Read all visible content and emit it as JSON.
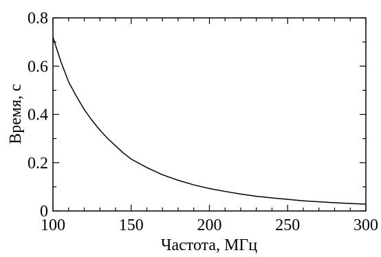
{
  "chart_data": {
    "type": "line",
    "title": "",
    "xlabel": "Частота, МГц",
    "ylabel": "Время, с",
    "xlim": [
      100,
      300
    ],
    "ylim": [
      0,
      0.8
    ],
    "x_ticks": [
      100,
      150,
      200,
      250,
      300
    ],
    "x_tick_labels": [
      "100",
      "150",
      "200",
      "250",
      "300"
    ],
    "y_ticks": [
      0,
      0.2,
      0.4,
      0.6,
      0.8
    ],
    "y_tick_labels": [
      "0",
      "0.2",
      "0.4",
      "0.6",
      "0.8"
    ],
    "grid": false,
    "line_color": "#000000",
    "series": [
      {
        "x": [
          100,
          105,
          110,
          115,
          120,
          125,
          130,
          135,
          140,
          145,
          150,
          160,
          170,
          180,
          190,
          200,
          210,
          220,
          230,
          240,
          250,
          260,
          270,
          280,
          290,
          300
        ],
        "values": [
          0.72,
          0.62,
          0.535,
          0.475,
          0.42,
          0.375,
          0.335,
          0.3,
          0.27,
          0.24,
          0.215,
          0.18,
          0.15,
          0.127,
          0.108,
          0.093,
          0.081,
          0.07,
          0.061,
          0.054,
          0.048,
          0.042,
          0.038,
          0.034,
          0.031,
          0.028
        ]
      }
    ]
  }
}
